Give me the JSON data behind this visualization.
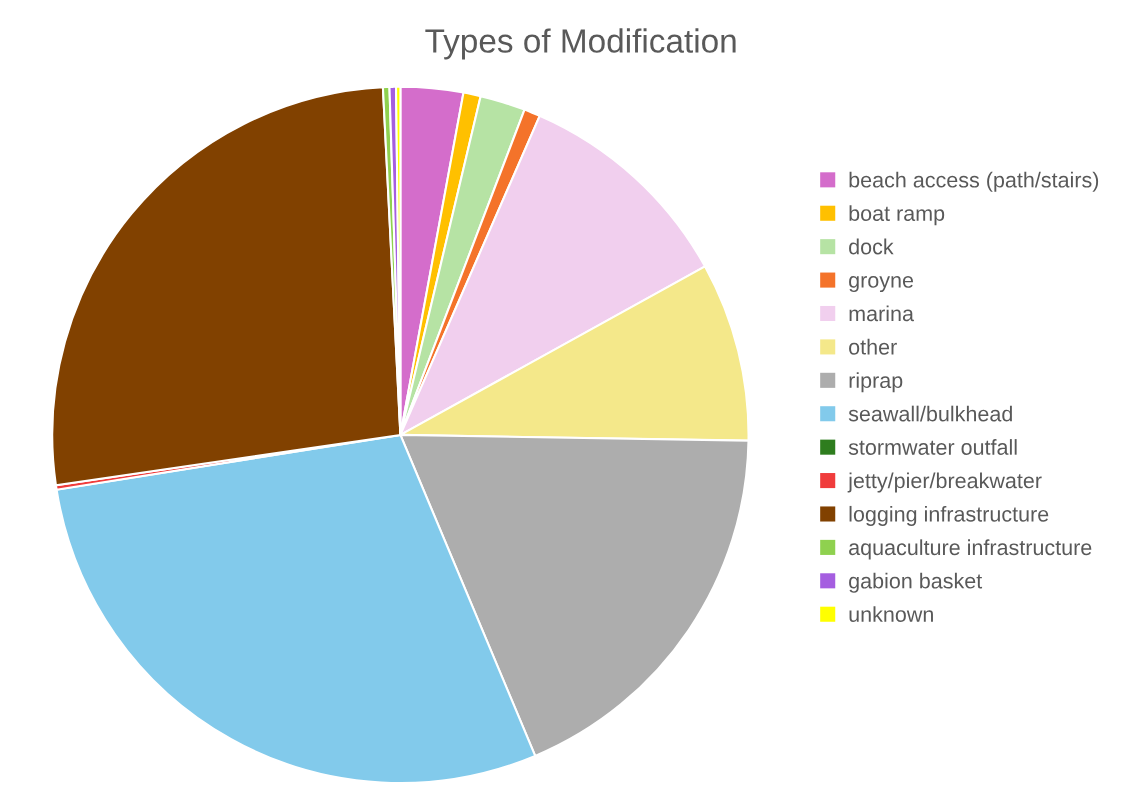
{
  "chart_data": {
    "type": "pie",
    "title": "Types of Modification",
    "categories": [
      "beach access (path/stairs)",
      "boat ramp",
      "dock",
      "groyne",
      "marina",
      "other",
      "riprap",
      "seawall/bulkhead",
      "stormwater outfall",
      "jetty/pier/breakwater",
      "logging infrastructure",
      "aquaculture infrastructure",
      "gabion basket",
      "unknown"
    ],
    "values": [
      2.9,
      0.8,
      2.1,
      0.75,
      10.4,
      8.3,
      18.4,
      28.8,
      null,
      0.2,
      26.5,
      0.3,
      0.3,
      0.2
    ],
    "colors": [
      "#d46dcb",
      "#ffc000",
      "#b6e3a4",
      "#f4732a",
      "#f1cfee",
      "#f4e88a",
      "#adadad",
      "#82caeb",
      "#2e7d1e",
      "#f03c3c",
      "#814100",
      "#8fd14f",
      "#a55ee0",
      "#ffff00"
    ],
    "legend": "right"
  }
}
